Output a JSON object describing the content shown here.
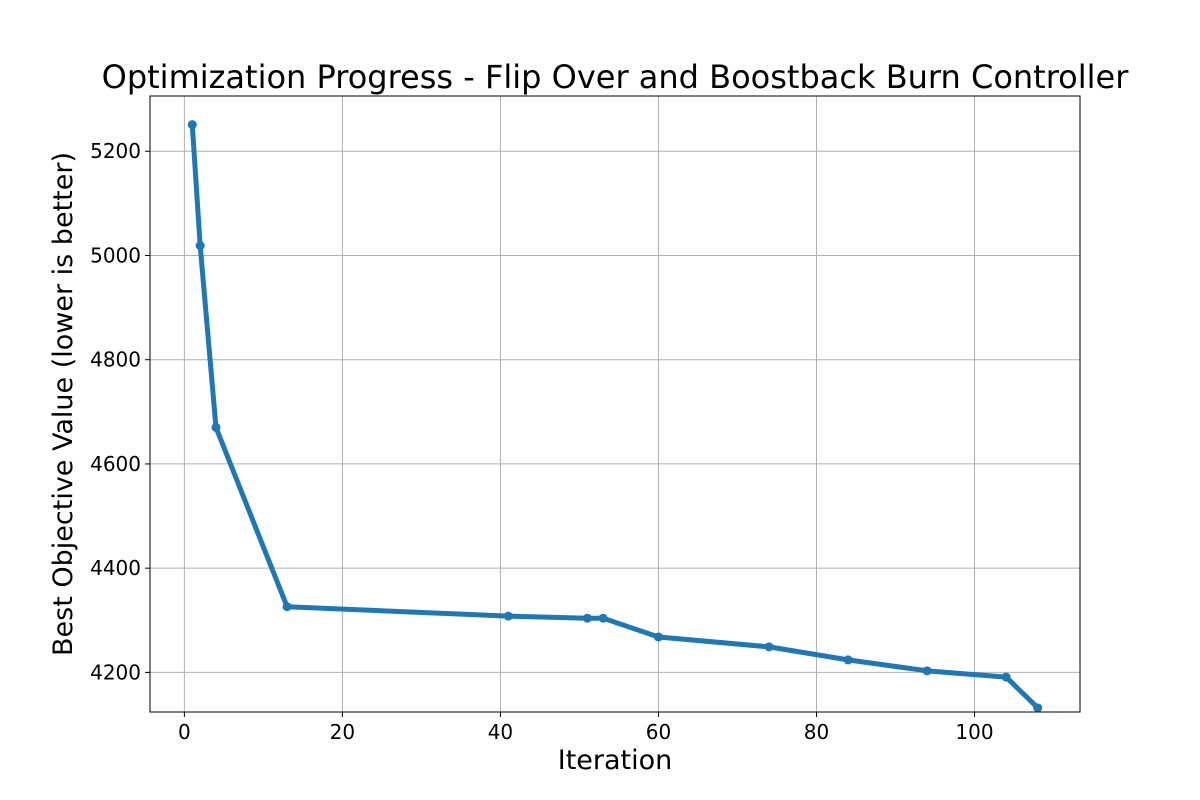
{
  "chart_data": {
    "type": "line",
    "title": "Optimization Progress - Flip Over and Boostback Burn Controller",
    "xlabel": "Iteration",
    "ylabel": "Best Objective Value (lower is better)",
    "xlim": [
      -4.35,
      113.35
    ],
    "ylim": [
      4124,
      5306
    ],
    "xticks": [
      0,
      20,
      40,
      60,
      80,
      100
    ],
    "yticks": [
      4200,
      4400,
      4600,
      4800,
      5000,
      5200
    ],
    "grid": true,
    "series": [
      {
        "color": "#1f77b4",
        "x": [
          1,
          2,
          4,
          13,
          41,
          51,
          53,
          60,
          74,
          84,
          94,
          104,
          108
        ],
        "y": [
          5251,
          5019,
          4670,
          4326,
          4308,
          4304,
          4304,
          4268,
          4249,
          4224,
          4203,
          4191,
          4132
        ]
      }
    ]
  }
}
